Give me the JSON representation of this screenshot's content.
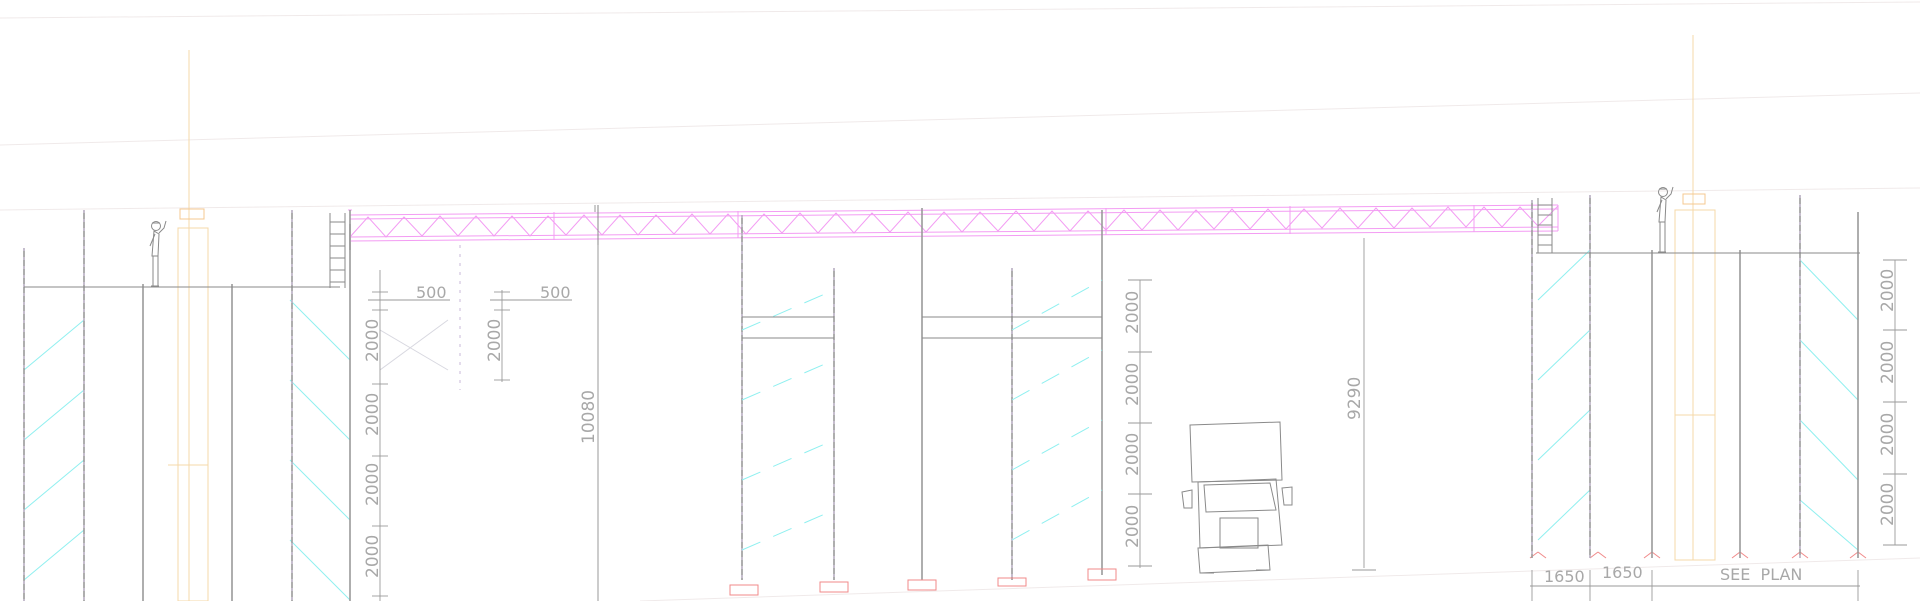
{
  "dimensions": {
    "left_offset_1": "500",
    "left_offset_2": "500",
    "lift_a1": "2000",
    "lift_a2": "2000",
    "lift_a3": "2000",
    "lift_a4": "2000",
    "lift_b1": "2000",
    "overall_height_left": "10080",
    "lift_c1": "2000",
    "lift_c2": "2000",
    "lift_c3": "2000",
    "lift_c4": "2000",
    "clear_height": "9290",
    "lift_d1": "2000",
    "lift_d2": "2000",
    "lift_d3": "2000",
    "lift_d4": "2000",
    "bay_1": "1650",
    "bay_2": "1650",
    "see_plan": "SEE  PLAN"
  },
  "colors": {
    "truss": "#f39cf3",
    "bracing": "#8ff0f0",
    "standards": "#9a9a9a",
    "guides": "#f5d8a8",
    "base_plates": "#f08a8a"
  },
  "icons": {
    "worker_left": "worker-figure-icon",
    "worker_right": "worker-figure-icon",
    "truck": "truck-icon"
  }
}
